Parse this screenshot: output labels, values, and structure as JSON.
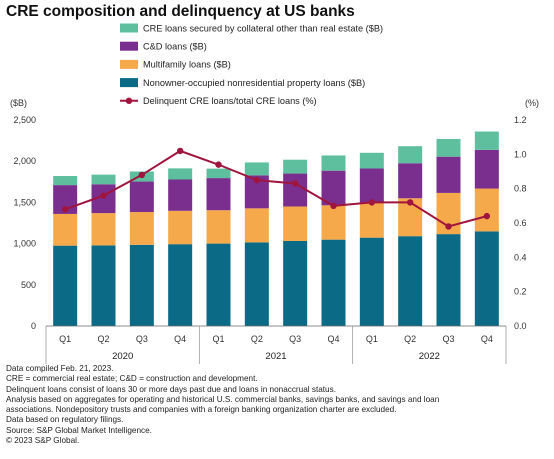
{
  "title": "CRE composition and delinquency at US banks",
  "chart_data": {
    "type": "bar",
    "stacked": true,
    "secondary_type": "line",
    "categories": [
      "Q1",
      "Q2",
      "Q3",
      "Q4",
      "Q1",
      "Q2",
      "Q3",
      "Q4",
      "Q1",
      "Q2",
      "Q3",
      "Q4"
    ],
    "years": [
      {
        "label": "2020",
        "start": 0,
        "end": 3
      },
      {
        "label": "2021",
        "start": 4,
        "end": 7
      },
      {
        "label": "2022",
        "start": 8,
        "end": 11
      }
    ],
    "series": [
      {
        "name": "Nonowner-occupied nonresidential property loans ($B)",
        "color": "#0b6a86",
        "values": [
          975,
          978,
          985,
          993,
          1000,
          1015,
          1032,
          1048,
          1072,
          1090,
          1115,
          1148
        ]
      },
      {
        "name": "Multifamily loans ($B)",
        "color": "#f5a94a",
        "values": [
          385,
          392,
          398,
          405,
          405,
          413,
          418,
          417,
          420,
          460,
          500,
          520
        ]
      },
      {
        "name": "C&D loans ($B)",
        "color": "#7a2f8f",
        "values": [
          350,
          350,
          370,
          380,
          390,
          400,
          400,
          420,
          420,
          425,
          440,
          470
        ]
      },
      {
        "name": "CRE loans secured by collateral other than real estate ($B)",
        "color": "#5ebf9f",
        "values": [
          110,
          117,
          122,
          135,
          115,
          157,
          168,
          185,
          190,
          207,
          215,
          222
        ]
      }
    ],
    "line_series": {
      "name": "Delinquent CRE loans/total CRE loans (%)",
      "color": "#a0153e",
      "values": [
        0.68,
        0.76,
        0.88,
        1.02,
        0.94,
        0.85,
        0.83,
        0.7,
        0.72,
        0.72,
        0.58,
        0.64
      ]
    },
    "legend_order": [
      3,
      2,
      1,
      0
    ],
    "ylabel_left": "($B)",
    "ylabel_right": "(%)",
    "ylim_left": [
      0,
      2500
    ],
    "ylim_right": [
      0,
      1.2
    ],
    "yticks_left": [
      "0",
      "500",
      "1,000",
      "1,500",
      "2,000",
      "2,500"
    ],
    "yticks_left_values": [
      0,
      500,
      1000,
      1500,
      2000,
      2500
    ],
    "yticks_right": [
      "0.0",
      "0.2",
      "0.4",
      "0.6",
      "0.8",
      "1.0",
      "1.2"
    ],
    "yticks_right_values": [
      0,
      0.2,
      0.4,
      0.6,
      0.8,
      1.0,
      1.2
    ],
    "grid": false,
    "legend_placement": "top"
  },
  "notes": [
    "Data compiled Feb. 21, 2023.",
    "CRE = commercial real estate; C&D = construction and development.",
    "Delinquent loans consist of loans 30 or more days past due and loans in nonaccrual status.",
    "Analysis based on aggregates for operating and historical U.S. commercial banks, savings banks, and savings and loan",
    "associations. Nondepository trusts and companies with a foreign banking organization charter are excluded.",
    "Data based on regulatory filings.",
    "Source: S&P Global Market Intelligence.",
    "© 2023 S&P Global."
  ]
}
